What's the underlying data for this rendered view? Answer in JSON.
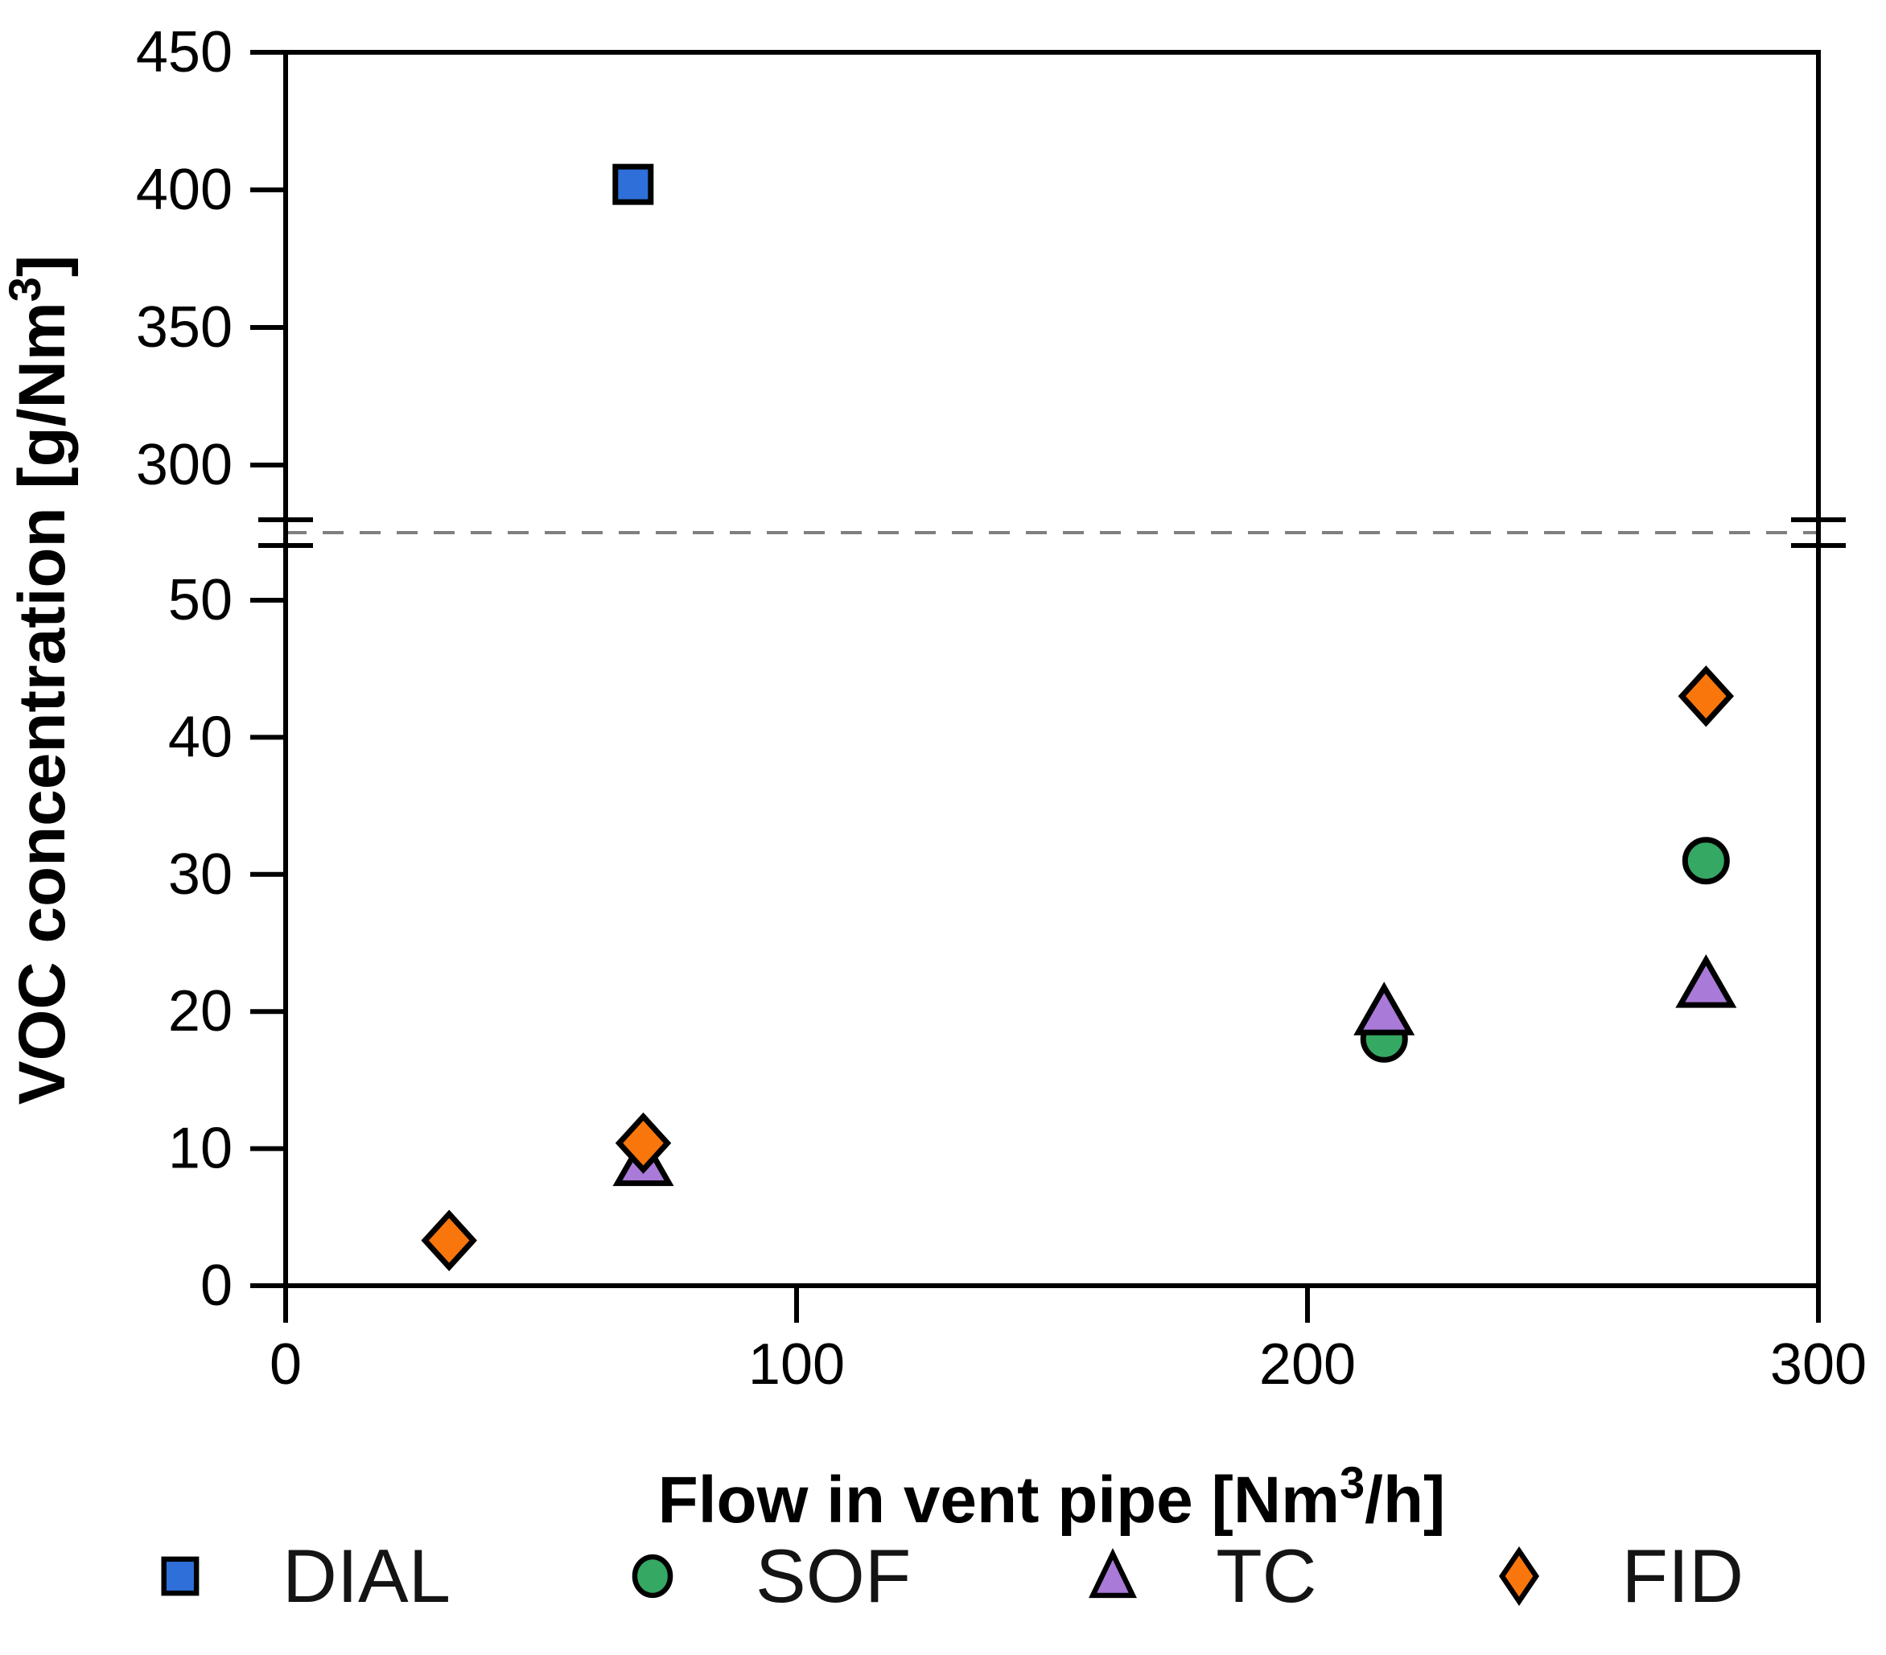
{
  "figure": {
    "background": "#ffffff",
    "y_axis": {
      "title_pre": "VOC concentration [g/Nm",
      "title_sup": "3",
      "title_post": "]"
    },
    "x_axis": {
      "title_pre": "Flow in vent pipe [Nm",
      "title_sup": "3",
      "title_post": "/h]"
    },
    "axis_color": "#000000",
    "break_divider_color": "#7f7f7f"
  },
  "chart_data": {
    "type": "scatter",
    "title": "",
    "xlabel": "Flow in vent pipe [Nm3/h]",
    "ylabel": "VOC concentration [g/Nm3]",
    "grid": false,
    "legend_position": "bottom",
    "xlim": [
      0,
      300
    ],
    "x_ticks": [
      0,
      100,
      200,
      300
    ],
    "y_axis_break": {
      "lower": {
        "lim": [
          0,
          50
        ],
        "ticks": [
          0,
          10,
          20,
          30,
          40,
          50
        ]
      },
      "upper": {
        "lim": [
          300,
          450
        ],
        "ticks": [
          300,
          350,
          400,
          450
        ]
      },
      "divider": "dashed horizontal line across plot at the axis break"
    },
    "marker_outline": "#000000",
    "series": [
      {
        "name": "DIAL",
        "marker": "square",
        "color": "#2e6fd9",
        "points": [
          [
            68,
            402
          ]
        ]
      },
      {
        "name": "SOF",
        "marker": "circle",
        "color": "#35a863",
        "points": [
          [
            215,
            18
          ],
          [
            278,
            31
          ]
        ]
      },
      {
        "name": "TC",
        "marker": "triangle",
        "color": "#a97ad8",
        "points": [
          [
            70,
            9
          ],
          [
            215,
            20
          ],
          [
            278,
            22
          ]
        ]
      },
      {
        "name": "FID",
        "marker": "diamond",
        "color": "#f8760c",
        "points": [
          [
            32,
            3.3
          ],
          [
            70,
            10.4
          ],
          [
            278,
            43
          ]
        ]
      }
    ]
  }
}
